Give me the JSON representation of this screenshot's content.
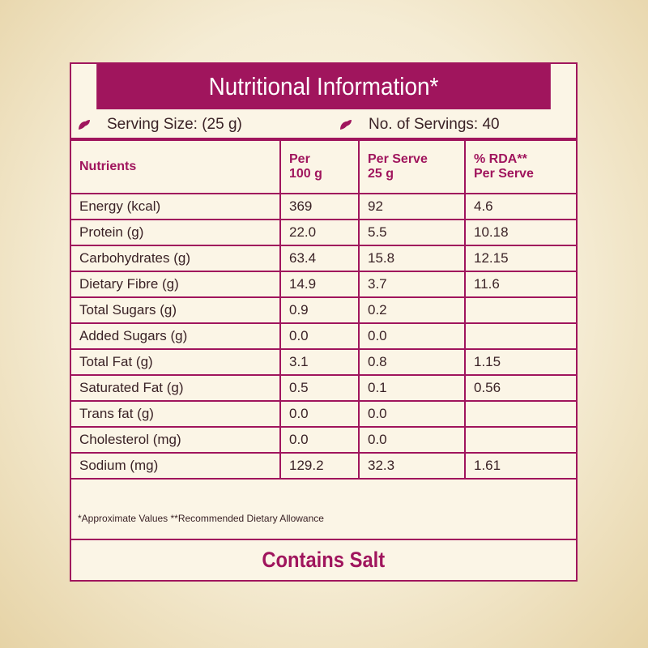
{
  "title": "Nutritional Information*",
  "serving": {
    "size_label": "Serving Size: (25 g)",
    "servings_label": "No. of Servings: 40"
  },
  "table": {
    "headers": [
      "Nutrients",
      "Per\n100 g",
      "Per Serve\n25 g",
      "% RDA**\nPer Serve"
    ],
    "rows": [
      {
        "name": "Energy (kcal)",
        "per100": "369",
        "perServe": "92",
        "rda": "4.6",
        "indent": false
      },
      {
        "name": "Protein (g)",
        "per100": "22.0",
        "perServe": "5.5",
        "rda": "10.18",
        "indent": false
      },
      {
        "name": "Carbohydrates (g)",
        "per100": "63.4",
        "perServe": "15.8",
        "rda": "12.15",
        "indent": false
      },
      {
        "name": "Dietary Fibre (g)",
        "per100": "14.9",
        "perServe": "3.7",
        "rda": "11.6",
        "indent": false
      },
      {
        "name": "Total Sugars (g)",
        "per100": "0.9",
        "perServe": "0.2",
        "rda": "",
        "indent": false
      },
      {
        "name": "Added Sugars (g)",
        "per100": "0.0",
        "perServe": "0.0",
        "rda": "",
        "indent": true
      },
      {
        "name": "Total Fat (g)",
        "per100": "3.1",
        "perServe": "0.8",
        "rda": "1.15",
        "indent": false
      },
      {
        "name": "Saturated Fat (g)",
        "per100": "0.5",
        "perServe": "0.1",
        "rda": "0.56",
        "indent": true
      },
      {
        "name": "Trans fat (g)",
        "per100": "0.0",
        "perServe": "0.0",
        "rda": "",
        "indent": true
      },
      {
        "name": "Cholesterol (mg)",
        "per100": "0.0",
        "perServe": "0.0",
        "rda": "",
        "indent": false
      },
      {
        "name": "Sodium (mg)",
        "per100": "129.2",
        "perServe": "32.3",
        "rda": "1.61",
        "indent": false
      }
    ]
  },
  "footnote": "*Approximate Values  **Recommended Dietary Allowance",
  "salt": "Contains Salt",
  "colors": {
    "brand": "#a0155d",
    "text": "#3a2226"
  },
  "icons": {
    "serving_bullet": "leaf-icon"
  }
}
